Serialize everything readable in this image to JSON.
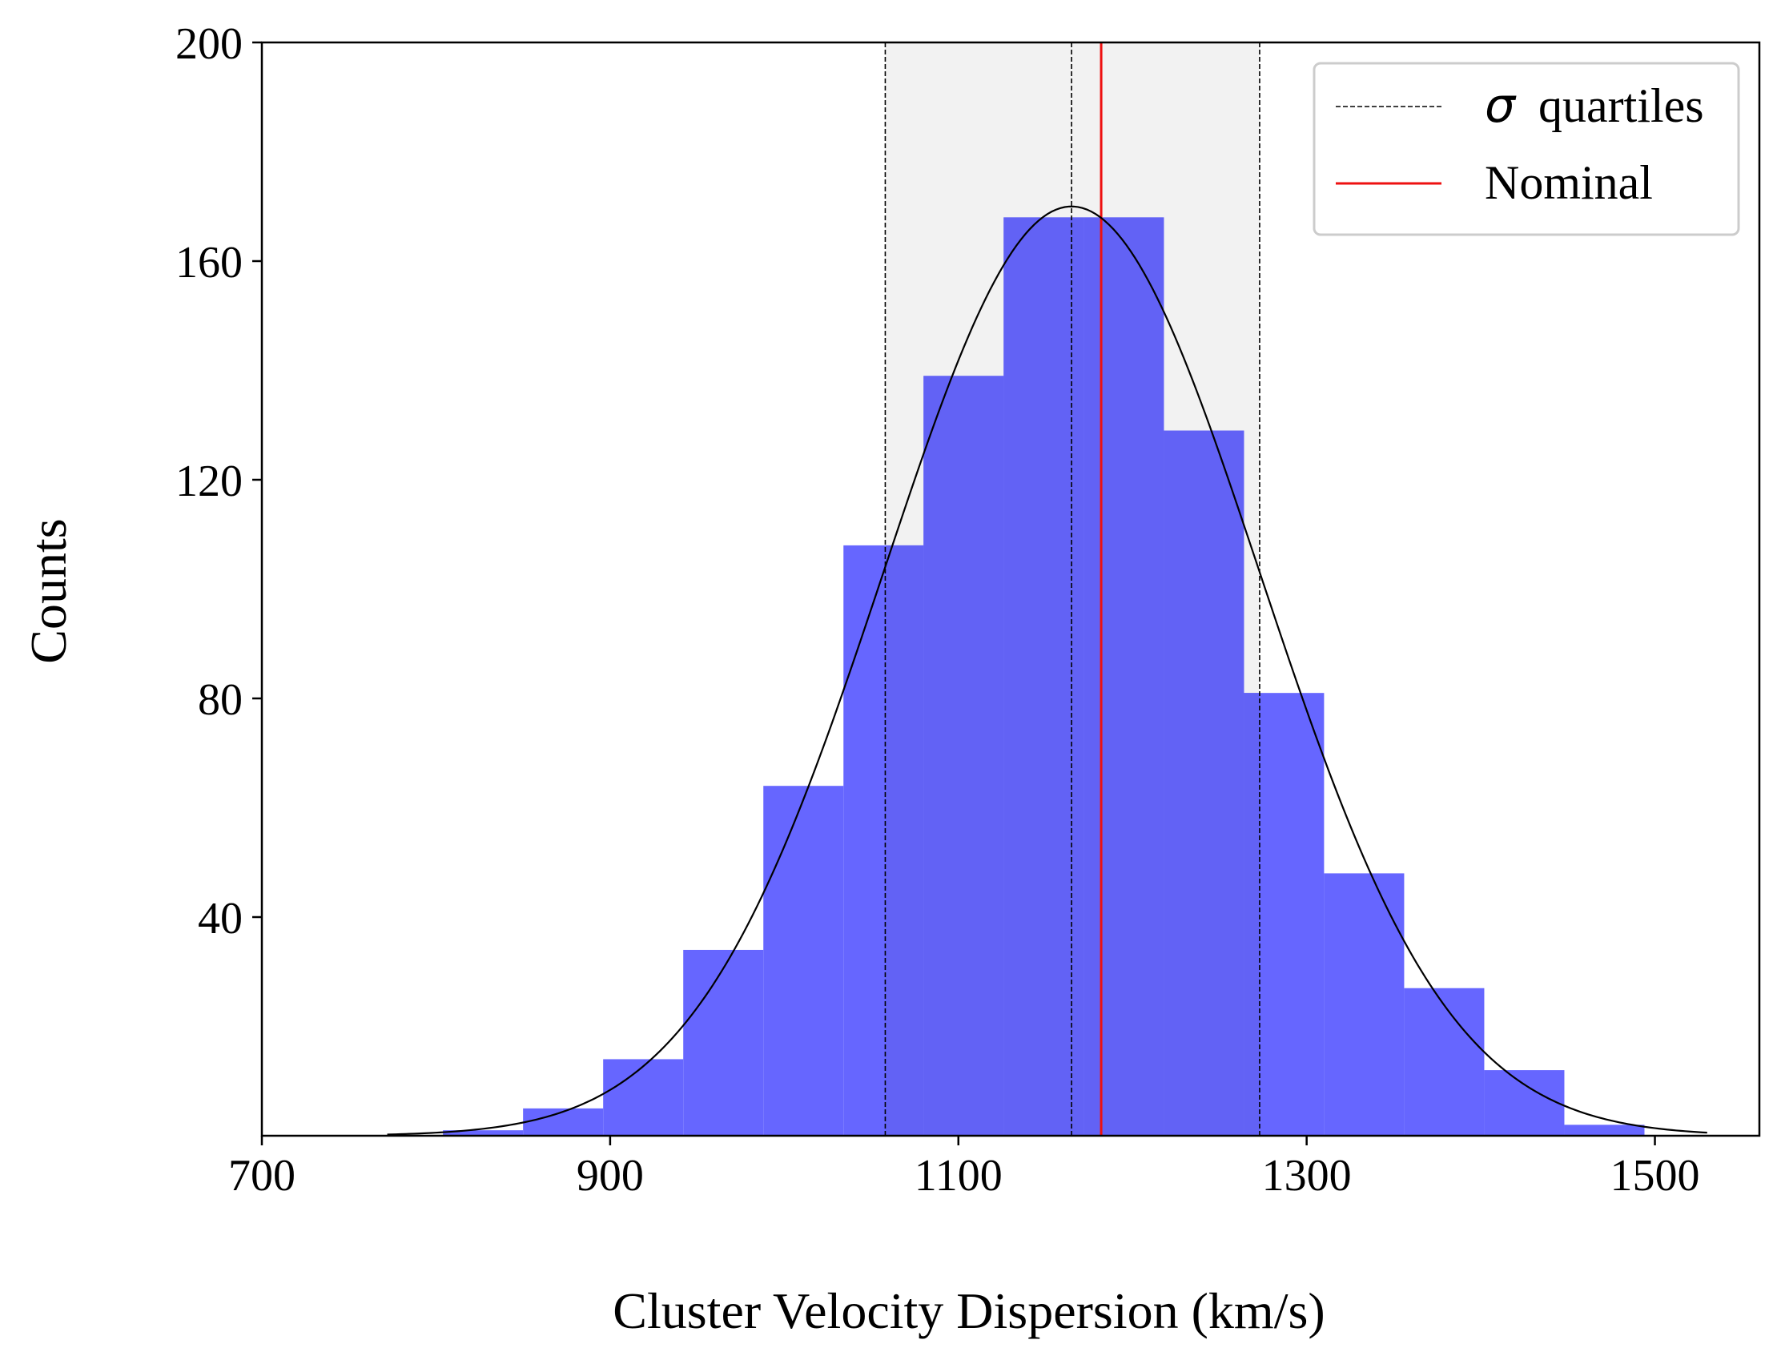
{
  "chart_data": {
    "type": "bar",
    "title": "",
    "xlabel": "Cluster Velocity Dispersion (km/s)",
    "ylabel": "Counts",
    "xlim": [
      700,
      1560
    ],
    "ylim": [
      0,
      200
    ],
    "xticks": [
      700,
      900,
      1100,
      1300,
      1500
    ],
    "yticks": [
      40,
      80,
      120,
      160,
      200
    ],
    "grid": false,
    "legend_position": "top-right",
    "histogram": {
      "name": "",
      "color": "#6666ff",
      "bins": [
        {
          "x0": 804,
          "x1": 850,
          "count": 1
        },
        {
          "x0": 850,
          "x1": 896,
          "count": 5
        },
        {
          "x0": 896,
          "x1": 942,
          "count": 14
        },
        {
          "x0": 942,
          "x1": 988,
          "count": 34
        },
        {
          "x0": 988,
          "x1": 1034,
          "count": 64
        },
        {
          "x0": 1034,
          "x1": 1080,
          "count": 108
        },
        {
          "x0": 1080,
          "x1": 1126,
          "count": 139
        },
        {
          "x0": 1126,
          "x1": 1172,
          "count": 168
        },
        {
          "x0": 1172,
          "x1": 1218,
          "count": 168
        },
        {
          "x0": 1218,
          "x1": 1264,
          "count": 129
        },
        {
          "x0": 1264,
          "x1": 1310,
          "count": 81
        },
        {
          "x0": 1310,
          "x1": 1356,
          "count": 48
        },
        {
          "x0": 1356,
          "x1": 1402,
          "count": 27
        },
        {
          "x0": 1402,
          "x1": 1448,
          "count": 12
        },
        {
          "x0": 1448,
          "x1": 1494,
          "count": 2
        }
      ]
    },
    "gaussian_fit": {
      "mean": 1165,
      "sigma": 108,
      "amplitude": 170,
      "x_range": [
        772,
        1530
      ],
      "color": "#000000"
    },
    "quartiles": {
      "label": "quartiles",
      "symbol": "σ",
      "values": [
        1058,
        1165,
        1273
      ],
      "color": "#000000",
      "shade_color": "#f2f2f2",
      "overlap_bar_color": "#6262f5"
    },
    "nominal": {
      "label": "Nominal",
      "value": 1182,
      "color": "#ee1111"
    }
  }
}
